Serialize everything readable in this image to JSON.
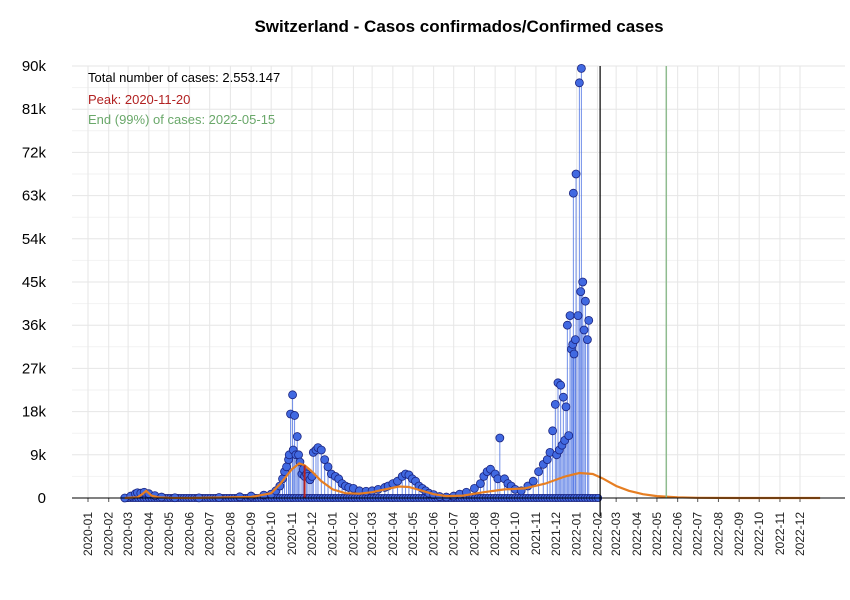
{
  "chart_data": {
    "type": "scatter",
    "title": "Switzerland - Casos confirmados/Confirmed cases",
    "xlabel": "",
    "ylabel": "",
    "ylim": [
      0,
      90000
    ],
    "y_ticks": [
      "0",
      "9k",
      "18k",
      "27k",
      "36k",
      "45k",
      "54k",
      "63k",
      "72k",
      "81k",
      "90k"
    ],
    "y_tick_values": [
      0,
      9000,
      18000,
      27000,
      36000,
      45000,
      54000,
      63000,
      72000,
      81000,
      90000
    ],
    "x_ticks": [
      "2020-01",
      "2020-02",
      "2020-03",
      "2020-04",
      "2020-05",
      "2020-06",
      "2020-07",
      "2020-08",
      "2020-09",
      "2020-10",
      "2020-11",
      "2020-12",
      "2021-01",
      "2021-02",
      "2021-03",
      "2021-04",
      "2021-05",
      "2021-06",
      "2021-07",
      "2021-08",
      "2021-09",
      "2021-10",
      "2021-11",
      "2021-12",
      "2022-01",
      "2022-02",
      "2022-03",
      "2022-04",
      "2022-05",
      "2022-06",
      "2022-07",
      "2022-08",
      "2022-09",
      "2022-10",
      "2022-11",
      "2022-12"
    ],
    "grid": true,
    "annotations": {
      "total": "Total number of cases: 2.553.147",
      "peak": "Peak: 2020-11-20",
      "end": "End (99%) of cases: 2022-05-15"
    },
    "colors": {
      "points": "#4169e1",
      "point_edge": "#1a237e",
      "fit": "#e67e22",
      "peak_line": "#b22222",
      "end_line": "#8fbc8f",
      "today_line": "#000000",
      "peak_text": "#b22222",
      "end_text": "#6aa86a"
    },
    "markers": {
      "peak_date": "2020-11-20",
      "end_date": "2022-05-15",
      "today_date": "2022-02-05"
    },
    "series": [
      {
        "kind": "daily",
        "points": [
          [
            "2020-02-25",
            0
          ],
          [
            "2020-03-05",
            400
          ],
          [
            "2020-03-12",
            900
          ],
          [
            "2020-03-15",
            1100
          ],
          [
            "2020-03-20",
            1000
          ],
          [
            "2020-03-25",
            1200
          ],
          [
            "2020-04-01",
            900
          ],
          [
            "2020-04-10",
            500
          ],
          [
            "2020-04-20",
            200
          ],
          [
            "2020-05-10",
            50
          ],
          [
            "2020-06-15",
            20
          ],
          [
            "2020-07-15",
            100
          ],
          [
            "2020-08-15",
            250
          ],
          [
            "2020-09-01",
            400
          ],
          [
            "2020-09-20",
            600
          ],
          [
            "2020-10-01",
            800
          ],
          [
            "2020-10-08",
            1500
          ],
          [
            "2020-10-14",
            2500
          ],
          [
            "2020-10-18",
            4000
          ],
          [
            "2020-10-21",
            5500
          ],
          [
            "2020-10-24",
            6500
          ],
          [
            "2020-10-27",
            8000
          ],
          [
            "2020-10-28",
            9000
          ],
          [
            "2020-10-30",
            17500
          ],
          [
            "2020-11-02",
            21500
          ],
          [
            "2020-11-03",
            10000
          ],
          [
            "2020-11-05",
            17200
          ],
          [
            "2020-11-07",
            9000
          ],
          [
            "2020-11-09",
            12800
          ],
          [
            "2020-11-11",
            9000
          ],
          [
            "2020-11-13",
            7500
          ],
          [
            "2020-11-16",
            5000
          ],
          [
            "2020-11-18",
            6000
          ],
          [
            "2020-11-20",
            4500
          ],
          [
            "2020-11-23",
            5000
          ],
          [
            "2020-11-25",
            4500
          ],
          [
            "2020-11-28",
            3800
          ],
          [
            "2020-12-01",
            4500
          ],
          [
            "2020-12-03",
            9500
          ],
          [
            "2020-12-07",
            10000
          ],
          [
            "2020-12-10",
            10500
          ],
          [
            "2020-12-15",
            10000
          ],
          [
            "2020-12-20",
            8000
          ],
          [
            "2020-12-25",
            6500
          ],
          [
            "2020-12-30",
            5000
          ],
          [
            "2021-01-05",
            4500
          ],
          [
            "2021-01-10",
            4000
          ],
          [
            "2021-01-15",
            3000
          ],
          [
            "2021-01-20",
            2500
          ],
          [
            "2021-01-25",
            2200
          ],
          [
            "2021-02-01",
            2000
          ],
          [
            "2021-02-10",
            1500
          ],
          [
            "2021-02-20",
            1400
          ],
          [
            "2021-03-01",
            1500
          ],
          [
            "2021-03-10",
            1800
          ],
          [
            "2021-03-20",
            2200
          ],
          [
            "2021-03-25",
            2500
          ],
          [
            "2021-04-01",
            3000
          ],
          [
            "2021-04-08",
            3500
          ],
          [
            "2021-04-15",
            4500
          ],
          [
            "2021-04-20",
            5000
          ],
          [
            "2021-04-25",
            4800
          ],
          [
            "2021-04-30",
            4000
          ],
          [
            "2021-05-05",
            3500
          ],
          [
            "2021-05-10",
            2500
          ],
          [
            "2021-05-15",
            2000
          ],
          [
            "2021-05-20",
            1500
          ],
          [
            "2021-05-25",
            1000
          ],
          [
            "2021-06-01",
            700
          ],
          [
            "2021-06-10",
            300
          ],
          [
            "2021-06-20",
            200
          ],
          [
            "2021-07-01",
            400
          ],
          [
            "2021-07-10",
            800
          ],
          [
            "2021-07-20",
            1200
          ],
          [
            "2021-08-01",
            2000
          ],
          [
            "2021-08-10",
            3000
          ],
          [
            "2021-08-15",
            4500
          ],
          [
            "2021-08-20",
            5500
          ],
          [
            "2021-08-25",
            6000
          ],
          [
            "2021-09-01",
            5000
          ],
          [
            "2021-09-05",
            4000
          ],
          [
            "2021-09-08",
            12500
          ],
          [
            "2021-09-15",
            4000
          ],
          [
            "2021-09-20",
            3000
          ],
          [
            "2021-09-25",
            2500
          ],
          [
            "2021-10-01",
            1800
          ],
          [
            "2021-10-10",
            1500
          ],
          [
            "2021-10-20",
            2500
          ],
          [
            "2021-10-28",
            3500
          ],
          [
            "2021-11-05",
            5500
          ],
          [
            "2021-11-12",
            7000
          ],
          [
            "2021-11-18",
            8000
          ],
          [
            "2021-11-22",
            9500
          ],
          [
            "2021-11-26",
            14000
          ],
          [
            "2021-11-30",
            19500
          ],
          [
            "2021-12-02",
            9000
          ],
          [
            "2021-12-04",
            24000
          ],
          [
            "2021-12-06",
            10000
          ],
          [
            "2021-12-08",
            23500
          ],
          [
            "2021-12-10",
            11000
          ],
          [
            "2021-12-12",
            21000
          ],
          [
            "2021-12-14",
            12000
          ],
          [
            "2021-12-16",
            19000
          ],
          [
            "2021-12-18",
            36000
          ],
          [
            "2021-12-20",
            13000
          ],
          [
            "2021-12-22",
            38000
          ],
          [
            "2021-12-24",
            31000
          ],
          [
            "2021-12-26",
            32000
          ],
          [
            "2021-12-27",
            63500
          ],
          [
            "2021-12-28",
            30000
          ],
          [
            "2021-12-30",
            33000
          ],
          [
            "2021-12-31",
            67500
          ],
          [
            "2022-01-03",
            38000
          ],
          [
            "2022-01-05",
            86500
          ],
          [
            "2022-01-07",
            43000
          ],
          [
            "2022-01-08",
            89500
          ],
          [
            "2022-01-10",
            45000
          ],
          [
            "2022-01-12",
            35000
          ],
          [
            "2022-01-14",
            41000
          ],
          [
            "2022-01-17",
            33000
          ],
          [
            "2022-01-19",
            37000
          ]
        ]
      },
      {
        "kind": "fit",
        "points": [
          [
            "2020-02-25",
            0
          ],
          [
            "2020-03-15",
            150
          ],
          [
            "2020-03-22",
            800
          ],
          [
            "2020-03-28",
            1500
          ],
          [
            "2020-04-05",
            500
          ],
          [
            "2020-04-15",
            150
          ],
          [
            "2020-05-01",
            50
          ],
          [
            "2020-06-01",
            0
          ],
          [
            "2020-09-01",
            200
          ],
          [
            "2020-10-01",
            1000
          ],
          [
            "2020-10-15",
            3000
          ],
          [
            "2020-11-01",
            6000
          ],
          [
            "2020-11-12",
            7200
          ],
          [
            "2020-11-20",
            6800
          ],
          [
            "2020-12-01",
            5500
          ],
          [
            "2020-12-15",
            3500
          ],
          [
            "2021-01-01",
            1800
          ],
          [
            "2021-01-20",
            1000
          ],
          [
            "2021-02-10",
            900
          ],
          [
            "2021-03-01",
            1200
          ],
          [
            "2021-03-20",
            1800
          ],
          [
            "2021-04-10",
            2400
          ],
          [
            "2021-04-25",
            2300
          ],
          [
            "2021-05-15",
            1500
          ],
          [
            "2021-06-01",
            800
          ],
          [
            "2021-06-20",
            400
          ],
          [
            "2021-07-15",
            500
          ],
          [
            "2021-08-15",
            1200
          ],
          [
            "2021-09-15",
            1800
          ],
          [
            "2021-10-15",
            2000
          ],
          [
            "2021-11-15",
            3000
          ],
          [
            "2021-12-15",
            4500
          ],
          [
            "2022-01-05",
            5200
          ],
          [
            "2022-01-25",
            5000
          ],
          [
            "2022-02-10",
            4000
          ],
          [
            "2022-03-01",
            2500
          ],
          [
            "2022-03-20",
            1500
          ],
          [
            "2022-04-10",
            800
          ],
          [
            "2022-05-01",
            400
          ],
          [
            "2022-06-01",
            150
          ],
          [
            "2022-07-01",
            50
          ],
          [
            "2022-09-01",
            0
          ],
          [
            "2022-12-31",
            0
          ]
        ]
      }
    ]
  }
}
